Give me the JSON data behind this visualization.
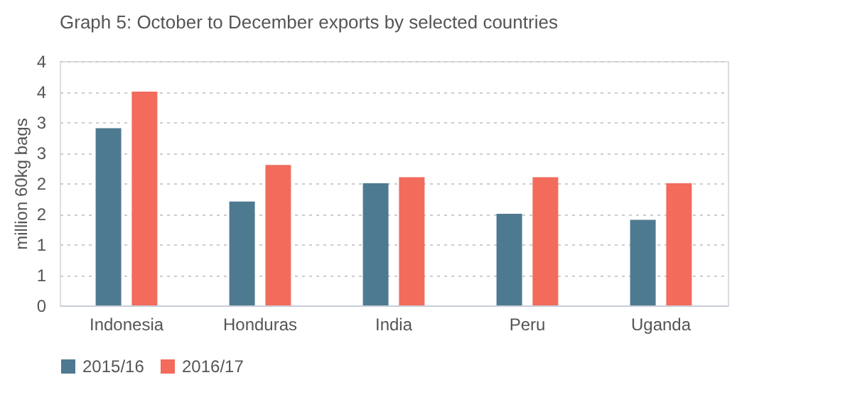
{
  "chart_data": {
    "type": "bar",
    "title": "Graph 5: October to December exports by selected countries",
    "ylabel": "million 60kg bags",
    "categories": [
      "Indonesia",
      "Honduras",
      "India",
      "Peru",
      "Uganda"
    ],
    "series": [
      {
        "name": "2015/16",
        "color": "#4e7a91",
        "values": [
          2.9,
          1.7,
          2.0,
          1.5,
          1.4
        ]
      },
      {
        "name": "2016/17",
        "color": "#f26b5b",
        "values": [
          3.5,
          2.3,
          2.1,
          2.1,
          2.0
        ]
      }
    ],
    "ylim": [
      0,
      4
    ],
    "yticks": [
      0,
      {
        "value": 0.5,
        "label": "1"
      },
      1,
      {
        "value": 1.5,
        "label": "2"
      },
      2,
      {
        "value": 2.5,
        "label": "3"
      },
      3,
      {
        "value": 3.5,
        "label": "4"
      },
      4
    ],
    "grid": "y",
    "legend": "bottom"
  }
}
